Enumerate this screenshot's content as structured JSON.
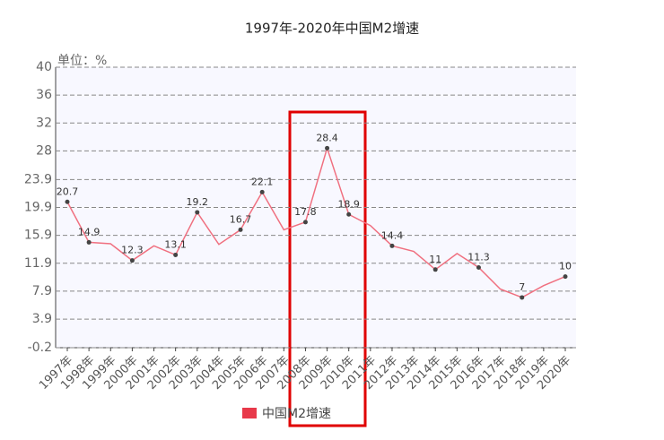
{
  "chart_data": {
    "type": "line",
    "title": "1997年-2020年中国M2增速",
    "y_unit": "单位：%",
    "categories": [
      "1997年",
      "1998年",
      "1999年",
      "2000年",
      "2001年",
      "2002年",
      "2003年",
      "2004年",
      "2005年",
      "2006年",
      "2007年",
      "2008年",
      "2009年",
      "2010年",
      "2011年",
      "2012年",
      "2013年",
      "2014年",
      "2015年",
      "2016年",
      "2017年",
      "2018年",
      "2019年",
      "2020年"
    ],
    "series": [
      {
        "name": "中国M2增速",
        "color": "#f07080",
        "values": [
          20.7,
          14.9,
          14.7,
          12.3,
          14.4,
          13.1,
          19.2,
          14.6,
          16.7,
          22.1,
          16.7,
          17.8,
          28.4,
          18.9,
          17.3,
          14.4,
          13.6,
          11,
          13.3,
          11.3,
          8.2,
          7,
          8.7,
          10
        ],
        "value_labels": [
          "20.7",
          "14.9",
          null,
          "12.3",
          null,
          "13.1",
          "19.2",
          null,
          "16.7",
          "22.1",
          null,
          "17.8",
          "28.4",
          "18.9",
          null,
          "14.4",
          null,
          "11",
          null,
          "11.3",
          null,
          "7",
          null,
          "10"
        ]
      }
    ],
    "ylim": [
      -0.2,
      40
    ],
    "yticks": [
      -0.2,
      3.9,
      7.9,
      11.9,
      15.9,
      19.9,
      23.9,
      28,
      32,
      36,
      40
    ],
    "grid": true
  }
}
